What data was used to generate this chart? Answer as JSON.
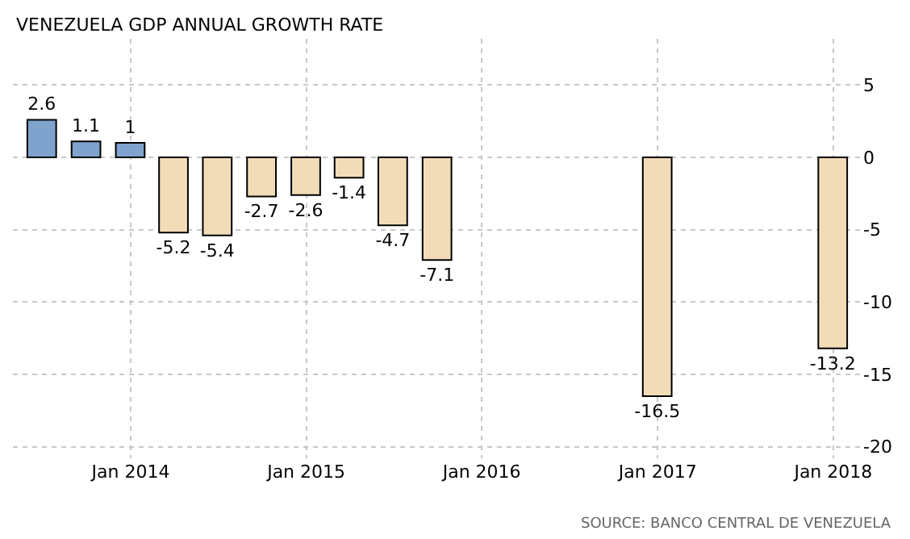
{
  "chart_data": {
    "type": "bar",
    "title": "VENEZUELA GDP ANNUAL GROWTH RATE",
    "x": [
      "2013-06-30",
      "2013-09-30",
      "2013-12-31",
      "2014-03-31",
      "2014-06-30",
      "2014-09-30",
      "2014-12-31",
      "2015-03-31",
      "2015-06-30",
      "2015-09-30",
      "2016-12-31",
      "2017-12-31"
    ],
    "values": [
      2.6,
      1.1,
      1,
      -5.2,
      -5.4,
      -2.7,
      -2.6,
      -1.4,
      -4.7,
      -7.1,
      -16.5,
      -13.2
    ],
    "colors": [
      "#7fa3cc",
      "#7fa3cc",
      "#7fa3cc",
      "#f2dcb8",
      "#f2dcb8",
      "#f2dcb8",
      "#f2dcb8",
      "#f2dcb8",
      "#f2dcb8",
      "#f2dcb8",
      "#f2dcb8",
      "#f2dcb8"
    ],
    "data_labels": true,
    "xlim": [
      "2013-05-01",
      "2018-03-01"
    ],
    "xticks": [
      {
        "value": "2014-01-01",
        "label": "Jan 2014"
      },
      {
        "value": "2015-01-01",
        "label": "Jan 2015"
      },
      {
        "value": "2016-01-01",
        "label": "Jan 2016"
      },
      {
        "value": "2017-01-01",
        "label": "Jan 2017"
      },
      {
        "value": "2018-01-01",
        "label": "Jan 2018"
      }
    ],
    "ylim": [
      -20.8,
      8.2
    ],
    "yticks": [
      5,
      0,
      -5,
      -10,
      -15,
      -20
    ],
    "grid": true,
    "legend": false,
    "annotations": [
      "SOURCE: BANCO CENTRAL DE VENEZUELA"
    ]
  }
}
